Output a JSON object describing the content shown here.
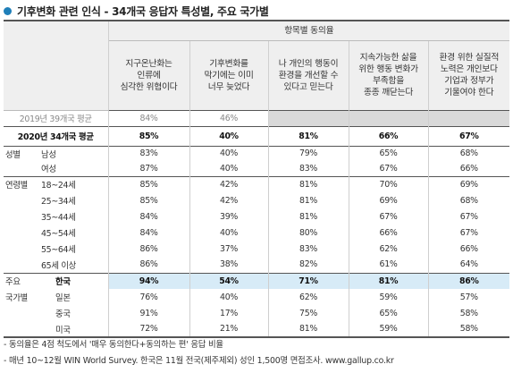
{
  "title": "기후변화 관련 인식 - 34개국 응답자 특성별, 주요 국가별",
  "header": {
    "group_label": "항목별 동의율",
    "questions": [
      [
        "지구온난화는",
        "인류에",
        "심각한 위협이다"
      ],
      [
        "기후변화를",
        "막기에는 이미",
        "너무 늦었다"
      ],
      [
        "나 개인의 행동이",
        "환경을 개선할 수",
        "있다고 믿는다"
      ],
      [
        "지속가능한 삶을",
        "위한 행동 변화가",
        "부족함을",
        "종종 깨닫는다"
      ],
      [
        "환경 위한 실질적",
        "노력은 개인보다",
        "기업과 정부가",
        "기울여야 한다"
      ]
    ]
  },
  "rows": {
    "y2019": {
      "label": "2019년 39개국 평균",
      "values": [
        "84%",
        "46%",
        "",
        "",
        ""
      ]
    },
    "y2020": {
      "label": "2020년 34개국 평균",
      "values": [
        "85%",
        "40%",
        "81%",
        "66%",
        "67%"
      ]
    },
    "gender": {
      "group": "성별",
      "items": [
        {
          "label": "남성",
          "values": [
            "83%",
            "40%",
            "79%",
            "65%",
            "68%"
          ]
        },
        {
          "label": "여성",
          "values": [
            "87%",
            "40%",
            "83%",
            "67%",
            "66%"
          ]
        }
      ]
    },
    "age": {
      "group": "연령별",
      "items": [
        {
          "label": "18~24세",
          "values": [
            "85%",
            "42%",
            "81%",
            "70%",
            "69%"
          ]
        },
        {
          "label": "25~34세",
          "values": [
            "85%",
            "42%",
            "81%",
            "69%",
            "68%"
          ]
        },
        {
          "label": "35~44세",
          "values": [
            "84%",
            "39%",
            "81%",
            "67%",
            "67%"
          ]
        },
        {
          "label": "45~54세",
          "values": [
            "84%",
            "40%",
            "80%",
            "66%",
            "67%"
          ]
        },
        {
          "label": "55~64세",
          "values": [
            "86%",
            "37%",
            "83%",
            "62%",
            "66%"
          ]
        },
        {
          "label": "65세 이상",
          "values": [
            "86%",
            "38%",
            "82%",
            "61%",
            "64%"
          ]
        }
      ]
    },
    "country": {
      "group_line1": "주요",
      "group_line2": "국가별",
      "items": [
        {
          "label": "한국",
          "values": [
            "94%",
            "54%",
            "71%",
            "81%",
            "86%"
          ]
        },
        {
          "label": "일본",
          "values": [
            "76%",
            "40%",
            "62%",
            "59%",
            "57%"
          ]
        },
        {
          "label": "중국",
          "values": [
            "91%",
            "17%",
            "75%",
            "65%",
            "58%"
          ]
        },
        {
          "label": "미국",
          "values": [
            "72%",
            "21%",
            "81%",
            "59%",
            "58%"
          ]
        }
      ]
    }
  },
  "footnotes": [
    "- 동의율은 4점 척도에서 '매우 동의한다+동의하는 편' 응답 비율",
    "- 매년 10~12월 WIN World Survey. 한국은 11월 전국(제주제외) 성인 1,500명 면접조사. www.gallup.co.kr"
  ],
  "colors": {
    "bullet": "#1f7fb9",
    "korea_highlight": "#d7ebf7",
    "header_bg": "#efefef",
    "na_shade": "#d9d9d9"
  }
}
